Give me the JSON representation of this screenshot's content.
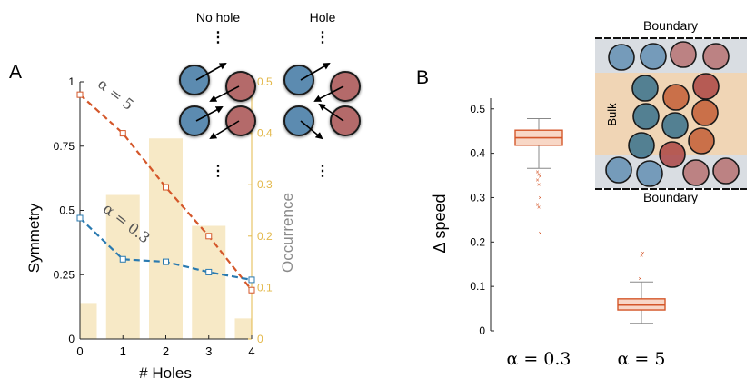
{
  "colors": {
    "red": "#d4572a",
    "blue": "#2a7ab0",
    "bar": "#f7e9c6",
    "yaxis_right": "#e3b84a",
    "particle_blue": "#5b8bb0",
    "particle_red": "#b46b6b",
    "bulk_fill": "#f0d5b5",
    "boundary_fill": "#d9dde2",
    "box_face": "#f8d7c6",
    "box_edge": "#d4572a"
  },
  "chart_data": [
    {
      "type": "bar+line",
      "panel_label": "A",
      "xlabel": "# Holes",
      "ylabel": "Symmetry",
      "ylabel_right": "Occurrence",
      "x_ticks": [
        "0",
        "1",
        "2",
        "3",
        "4"
      ],
      "y_ticks": [
        "0",
        "0.25",
        "0.5",
        "0.75",
        "1"
      ],
      "y_right_ticks": [
        "0",
        "0.1",
        "0.2",
        "0.3",
        "0.4",
        "0.5"
      ],
      "ylim": [
        0,
        1
      ],
      "ylim_right": [
        0,
        0.5
      ],
      "xlim": [
        0,
        4
      ],
      "bars": {
        "name": "Occurrence",
        "x": [
          0,
          1,
          2,
          3,
          4
        ],
        "values": [
          0.07,
          0.28,
          0.39,
          0.22,
          0.04
        ]
      },
      "series": [
        {
          "name": "α = 5",
          "label_text": "α = 5",
          "x": [
            0,
            1,
            2,
            3,
            4
          ],
          "values": [
            0.95,
            0.8,
            0.59,
            0.4,
            0.19
          ]
        },
        {
          "name": "α = 0.3",
          "label_text": "α = 0.3",
          "x": [
            0,
            1,
            2,
            3,
            4
          ],
          "values": [
            0.47,
            0.31,
            0.3,
            0.26,
            0.23
          ]
        }
      ],
      "legend_titles": [
        "No hole",
        "Hole"
      ],
      "ellipsis": "⋮"
    },
    {
      "type": "box",
      "panel_label": "B",
      "ylabel": "Δ speed",
      "y_ticks": [
        "0",
        "0.1",
        "0.2",
        "0.3",
        "0.4",
        "0.5"
      ],
      "ylim": [
        0,
        0.52
      ],
      "categories": [
        "α = 0.3",
        "α = 5"
      ],
      "boxes": [
        {
          "name": "α = 0.3",
          "q1": 0.418,
          "median": 0.435,
          "q3": 0.452,
          "whisker_low": 0.366,
          "whisker_high": 0.478,
          "outliers": [
            0.358,
            0.352,
            0.348,
            0.34,
            0.33,
            0.3,
            0.285,
            0.278,
            0.22
          ]
        },
        {
          "name": "α = 5",
          "q1": 0.047,
          "median": 0.058,
          "q3": 0.072,
          "whisker_low": 0.017,
          "whisker_high": 0.11,
          "outliers": [
            0.118,
            0.17,
            0.175
          ]
        }
      ],
      "inset": {
        "top_label": "Boundary",
        "bottom_label": "Boundary",
        "middle_label": "Bulk"
      }
    }
  ]
}
